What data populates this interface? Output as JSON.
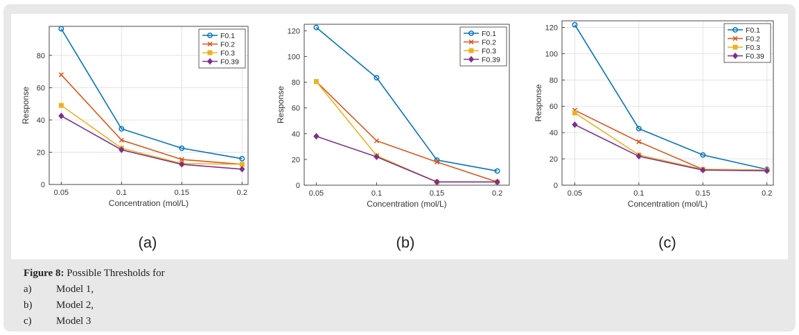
{
  "caption": {
    "label": "Figure 8:",
    "text": "Possible Thresholds for",
    "items": [
      {
        "letter": "a)",
        "text": "Model 1,"
      },
      {
        "letter": "b)",
        "text": "Model 2,"
      },
      {
        "letter": "c)",
        "text": "Model 3"
      }
    ]
  },
  "series_styles": [
    {
      "name": "F0.1",
      "color": "#0072BD",
      "marker": "circle"
    },
    {
      "name": "F0.2",
      "color": "#D95319",
      "marker": "x"
    },
    {
      "name": "F0.3",
      "color": "#EDB120",
      "marker": "square"
    },
    {
      "name": "F0.39",
      "color": "#7E2F8E",
      "marker": "diamond"
    }
  ],
  "chart_data": [
    {
      "type": "line",
      "panel_label": "(a)",
      "xlabel": "Concentration (mol/L)",
      "ylabel": "Response",
      "x": [
        0.05,
        0.1,
        0.15,
        0.2
      ],
      "xticks": [
        "0.05",
        "0.1",
        "0.15",
        "0.2"
      ],
      "xlim": [
        0.04,
        0.205
      ],
      "ylim": [
        0,
        98
      ],
      "yticks": [
        0,
        20,
        40,
        60,
        80
      ],
      "grid": true,
      "legend": "top-right",
      "series": [
        {
          "name": "F0.1",
          "values": [
            96.5,
            34.5,
            22.5,
            16
          ]
        },
        {
          "name": "F0.2",
          "values": [
            68,
            27.5,
            15.5,
            12.5
          ]
        },
        {
          "name": "F0.3",
          "values": [
            49,
            22.5,
            13,
            12.5
          ]
        },
        {
          "name": "F0.39",
          "values": [
            42.5,
            21.5,
            12.5,
            9.5
          ]
        }
      ]
    },
    {
      "type": "line",
      "panel_label": "(b)",
      "xlabel": "Concentration (mol/L)",
      "ylabel": "Response",
      "x": [
        0.05,
        0.1,
        0.15,
        0.2
      ],
      "xticks": [
        "0.05",
        "0.1",
        "0.15",
        "0.2"
      ],
      "xlim": [
        0.04,
        0.21
      ],
      "ylim": [
        0,
        125
      ],
      "yticks": [
        0,
        20,
        40,
        60,
        80,
        100,
        120
      ],
      "grid": false,
      "legend": "top-right",
      "series": [
        {
          "name": "F0.1",
          "values": [
            122.5,
            83.5,
            19.5,
            11
          ]
        },
        {
          "name": "F0.2",
          "values": [
            80.5,
            34.5,
            18,
            2.5
          ]
        },
        {
          "name": "F0.3",
          "values": [
            80.5,
            23,
            2.5,
            2.5
          ]
        },
        {
          "name": "F0.39",
          "values": [
            38,
            22,
            2.5,
            2.5
          ]
        }
      ]
    },
    {
      "type": "line",
      "panel_label": "(c)",
      "xlabel": "Concentration (mol/L)",
      "ylabel": "Response",
      "x": [
        0.05,
        0.1,
        0.15,
        0.2
      ],
      "xticks": [
        "0.05",
        "0.1",
        "0.15",
        "0.2"
      ],
      "xlim": [
        0.04,
        0.205
      ],
      "ylim": [
        0,
        125
      ],
      "yticks": [
        0,
        20,
        40,
        60,
        80,
        100,
        120
      ],
      "grid": true,
      "legend": "top-right",
      "series": [
        {
          "name": "F0.1",
          "values": [
            122,
            43,
            23,
            12
          ]
        },
        {
          "name": "F0.2",
          "values": [
            57,
            33,
            12,
            11.5
          ]
        },
        {
          "name": "F0.3",
          "values": [
            55,
            23,
            12,
            11.5
          ]
        },
        {
          "name": "F0.39",
          "values": [
            46,
            22,
            11.5,
            11
          ]
        }
      ]
    }
  ]
}
